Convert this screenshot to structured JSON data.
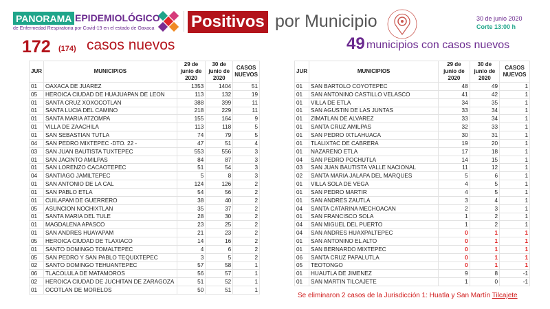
{
  "header": {
    "brand_left": "PANORAMA",
    "brand_right": "EPIDEMIOLÓGICO",
    "brand_sub": "de Enfermedad Respiratoria por Covid-19 en el estado de Oaxaca",
    "title_badge": "Positivos",
    "title_rest": "por Municipio",
    "date": "30 de junio 2020",
    "corte": "Corte 13:00 h",
    "colors": {
      "teal": "#1fa58a",
      "purple": "#6b2a8f",
      "red": "#b3131b"
    }
  },
  "summary": {
    "new_cases": "172",
    "new_cases_paren": "(174)",
    "new_cases_label": "casos nuevos",
    "municipalities": "49",
    "municipalities_label": "municipios con casos nuevos"
  },
  "columns": [
    "JUR",
    "MUNICIPIOS",
    "29 de junio de 2020",
    "30 de junio de 2020",
    "CASOS NUEVOS"
  ],
  "left_table": [
    [
      "01",
      "OAXACA DE JUAREZ",
      1353,
      1404,
      51
    ],
    [
      "05",
      "HEROICA CIUDAD DE HUAJUAPAN DE LEON",
      113,
      132,
      19
    ],
    [
      "01",
      "SANTA CRUZ XOXOCOTLAN",
      388,
      399,
      11
    ],
    [
      "01",
      "SANTA LUCIA DEL CAMINO",
      218,
      229,
      11
    ],
    [
      "01",
      "SANTA MARIA ATZOMPA",
      155,
      164,
      9
    ],
    [
      "01",
      "VILLA DE ZAACHILA",
      113,
      118,
      5
    ],
    [
      "01",
      "SAN SEBASTIAN TUTLA",
      74,
      79,
      5
    ],
    [
      "04",
      "SAN PEDRO MIXTEPEC -DTO. 22 -",
      47,
      51,
      4
    ],
    [
      "03",
      "SAN JUAN BAUTISTA TUXTEPEC",
      553,
      556,
      3
    ],
    [
      "01",
      "SAN JACINTO AMILPAS",
      84,
      87,
      3
    ],
    [
      "01",
      "SAN LORENZO CACAOTEPEC",
      51,
      54,
      3
    ],
    [
      "04",
      "SANTIAGO JAMILTEPEC",
      5,
      8,
      3
    ],
    [
      "01",
      "SAN ANTONIO DE LA CAL",
      124,
      126,
      2
    ],
    [
      "01",
      "SAN PABLO ETLA",
      54,
      56,
      2
    ],
    [
      "01",
      "CUILAPAM DE GUERRERO",
      38,
      40,
      2
    ],
    [
      "05",
      "ASUNCION NOCHIXTLAN",
      35,
      37,
      2
    ],
    [
      "01",
      "SANTA MARIA DEL TULE",
      28,
      30,
      2
    ],
    [
      "01",
      "MAGDALENA APASCO",
      23,
      25,
      2
    ],
    [
      "01",
      "SAN ANDRES HUAYAPAM",
      21,
      23,
      2
    ],
    [
      "05",
      "HEROICA CIUDAD DE TLAXIACO",
      14,
      16,
      2
    ],
    [
      "01",
      "SANTO DOMINGO TOMALTEPEC",
      4,
      6,
      2
    ],
    [
      "05",
      "SAN PEDRO Y SAN PABLO TEQUIXTEPEC",
      3,
      5,
      2
    ],
    [
      "02",
      "SANTO DOMINGO TEHUANTEPEC",
      57,
      58,
      1
    ],
    [
      "06",
      "TLACOLULA DE MATAMOROS",
      56,
      57,
      1
    ],
    [
      "02",
      "HEROICA CIUDAD DE JUCHITAN DE ZARAGOZA",
      51,
      52,
      1
    ],
    [
      "01",
      "OCOTLAN DE MORELOS",
      50,
      51,
      1
    ]
  ],
  "right_table": [
    [
      "01",
      "SAN BARTOLO COYOTEPEC",
      48,
      49,
      1
    ],
    [
      "01",
      "SAN ANTONINO CASTILLO VELASCO",
      41,
      42,
      1
    ],
    [
      "01",
      "VILLA DE ETLA",
      34,
      35,
      1
    ],
    [
      "01",
      "SAN AGUSTIN DE LAS JUNTAS",
      33,
      34,
      1
    ],
    [
      "01",
      "ZIMATLAN DE ALVAREZ",
      33,
      34,
      1
    ],
    [
      "01",
      "SANTA CRUZ AMILPAS",
      32,
      33,
      1
    ],
    [
      "01",
      "SAN PEDRO IXTLAHUACA",
      30,
      31,
      1
    ],
    [
      "01",
      "TLALIXTAC DE CABRERA",
      19,
      20,
      1
    ],
    [
      "01",
      "NAZARENO ETLA",
      17,
      18,
      1
    ],
    [
      "04",
      "SAN PEDRO POCHUTLA",
      14,
      15,
      1
    ],
    [
      "03",
      "SAN JUAN BAUTISTA VALLE NACIONAL",
      11,
      12,
      1
    ],
    [
      "02",
      "SANTA MARIA JALAPA DEL MARQUES",
      5,
      6,
      1
    ],
    [
      "01",
      "VILLA SOLA DE VEGA",
      4,
      5,
      1
    ],
    [
      "01",
      "SAN PEDRO MARTIR",
      4,
      5,
      1
    ],
    [
      "01",
      "SAN ANDRES ZAUTLA",
      3,
      4,
      1
    ],
    [
      "04",
      "SANTA CATARINA MECHOACAN",
      2,
      3,
      1
    ],
    [
      "01",
      "SAN FRANCISCO SOLA",
      1,
      2,
      1
    ],
    [
      "04",
      "SAN MIGUEL DEL PUERTO",
      1,
      2,
      1
    ],
    [
      "04",
      "SAN ANDRES HUAXPALTEPEC",
      0,
      1,
      1
    ],
    [
      "01",
      "SAN ANTONINO EL ALTO",
      0,
      1,
      1
    ],
    [
      "01",
      "SAN BERNARDO MIXTEPEC",
      0,
      1,
      1
    ],
    [
      "06",
      "SANTA CRUZ PAPALUTLA",
      0,
      1,
      1
    ],
    [
      "05",
      "TEOTONGO",
      0,
      1,
      1
    ],
    [
      "01",
      "HUAUTLA DE JIMENEZ",
      9,
      8,
      -1
    ],
    [
      "01",
      "SAN MARTIN TILCAJETE",
      1,
      0,
      -1
    ]
  ],
  "highlighted_rows_color": "#e01f1f",
  "note": {
    "text": "Se eliminaron 2 casos de la Jurisdicción 1: Huatla y San Martín ",
    "underlined": "Tilcajete"
  }
}
